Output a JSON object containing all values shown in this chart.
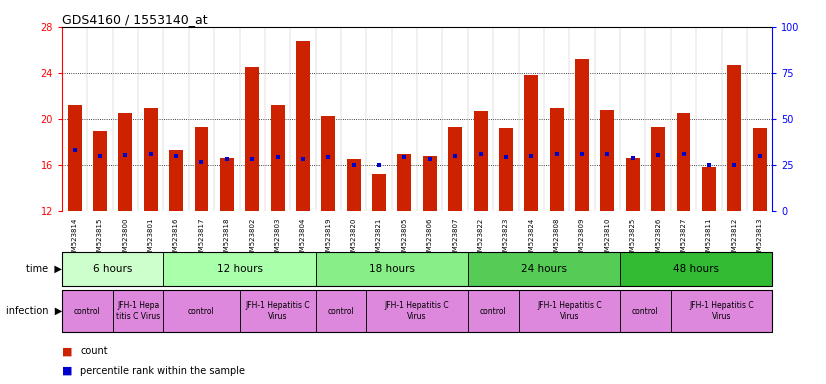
{
  "title": "GDS4160 / 1553140_at",
  "samples": [
    "GSM523814",
    "GSM523815",
    "GSM523800",
    "GSM523801",
    "GSM523816",
    "GSM523817",
    "GSM523818",
    "GSM523802",
    "GSM523803",
    "GSM523804",
    "GSM523819",
    "GSM523820",
    "GSM523821",
    "GSM523805",
    "GSM523806",
    "GSM523807",
    "GSM523822",
    "GSM523823",
    "GSM523824",
    "GSM523808",
    "GSM523809",
    "GSM523810",
    "GSM523825",
    "GSM523826",
    "GSM523827",
    "GSM523811",
    "GSM523812",
    "GSM523813"
  ],
  "count_values": [
    21.2,
    19.0,
    20.5,
    21.0,
    17.3,
    19.3,
    16.6,
    24.5,
    21.2,
    26.8,
    20.3,
    16.5,
    15.2,
    17.0,
    16.8,
    19.3,
    20.7,
    19.2,
    23.8,
    21.0,
    25.2,
    20.8,
    16.6,
    19.3,
    20.5,
    15.8,
    24.7,
    19.2
  ],
  "percentile_values": [
    17.3,
    16.8,
    16.9,
    17.0,
    16.8,
    16.3,
    16.5,
    16.5,
    16.7,
    16.5,
    16.7,
    16.0,
    16.0,
    16.7,
    16.5,
    16.8,
    17.0,
    16.7,
    16.8,
    17.0,
    17.0,
    17.0,
    16.6,
    16.9,
    17.0,
    16.0,
    16.0,
    16.8
  ],
  "ymin": 12,
  "ymax": 28,
  "yticks_left": [
    12,
    16,
    20,
    24,
    28
  ],
  "yticks_right": [
    0,
    25,
    50,
    75,
    100
  ],
  "bar_color": "#cc2200",
  "percentile_color": "#0000cc",
  "grid_lines": [
    16,
    20,
    24
  ],
  "time_groups": [
    {
      "label": "6 hours",
      "indices": [
        0,
        1,
        2,
        3
      ],
      "color": "#ccffcc"
    },
    {
      "label": "12 hours",
      "indices": [
        4,
        5,
        6,
        7,
        8,
        9
      ],
      "color": "#aaffaa"
    },
    {
      "label": "18 hours",
      "indices": [
        10,
        11,
        12,
        13,
        14,
        15
      ],
      "color": "#88ee88"
    },
    {
      "label": "24 hours",
      "indices": [
        16,
        17,
        18,
        19,
        20,
        21
      ],
      "color": "#55cc55"
    },
    {
      "label": "48 hours",
      "indices": [
        22,
        23,
        24,
        25,
        26,
        27
      ],
      "color": "#33bb33"
    }
  ],
  "infection_groups": [
    {
      "label": "control",
      "indices": [
        0,
        1
      ],
      "color": "#dd88dd"
    },
    {
      "label": "JFH-1 Hepa\ntitis C Virus",
      "indices": [
        2,
        3
      ],
      "color": "#dd88dd"
    },
    {
      "label": "control",
      "indices": [
        4,
        5,
        6
      ],
      "color": "#dd88dd"
    },
    {
      "label": "JFH-1 Hepatitis C\nVirus",
      "indices": [
        7,
        8,
        9
      ],
      "color": "#dd88dd"
    },
    {
      "label": "control",
      "indices": [
        10,
        11
      ],
      "color": "#dd88dd"
    },
    {
      "label": "JFH-1 Hepatitis C\nVirus",
      "indices": [
        12,
        13,
        14,
        15
      ],
      "color": "#dd88dd"
    },
    {
      "label": "control",
      "indices": [
        16,
        17
      ],
      "color": "#dd88dd"
    },
    {
      "label": "JFH-1 Hepatitis C\nVirus",
      "indices": [
        18,
        19,
        20,
        21
      ],
      "color": "#dd88dd"
    },
    {
      "label": "control",
      "indices": [
        22,
        23
      ],
      "color": "#dd88dd"
    },
    {
      "label": "JFH-1 Hepatitis C\nVirus",
      "indices": [
        24,
        25,
        26,
        27
      ],
      "color": "#dd88dd"
    }
  ]
}
